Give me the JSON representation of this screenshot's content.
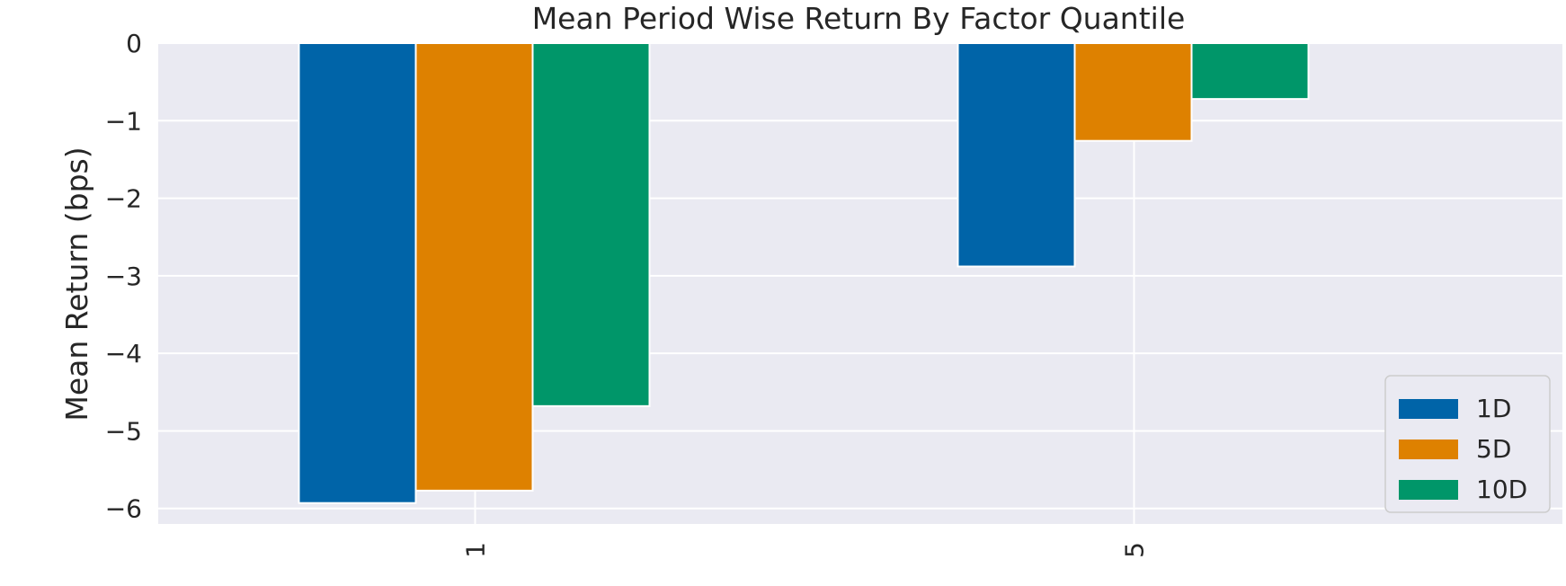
{
  "chart_data": {
    "type": "bar",
    "title": "Mean Period Wise Return By Factor Quantile",
    "xlabel": "",
    "ylabel": "Mean Return (bps)",
    "categories": [
      "1",
      "5"
    ],
    "series": [
      {
        "name": "1D",
        "color": "#0064a8",
        "values": [
          -5.93,
          -2.88
        ]
      },
      {
        "name": "5D",
        "color": "#de8100",
        "values": [
          -5.77,
          -1.26
        ]
      },
      {
        "name": "10D",
        "color": "#009669",
        "values": [
          -4.68,
          -0.72
        ]
      }
    ],
    "ylim": [
      -6.2,
      0
    ],
    "yticks": [
      0,
      -1,
      -2,
      -3,
      -4,
      -5,
      -6
    ],
    "ytick_labels": [
      "0",
      "−1",
      "−2",
      "−3",
      "−4",
      "−5",
      "−6"
    ],
    "grid": true,
    "legend_position": "lower-right",
    "x_tick_rotation": "vertical"
  }
}
